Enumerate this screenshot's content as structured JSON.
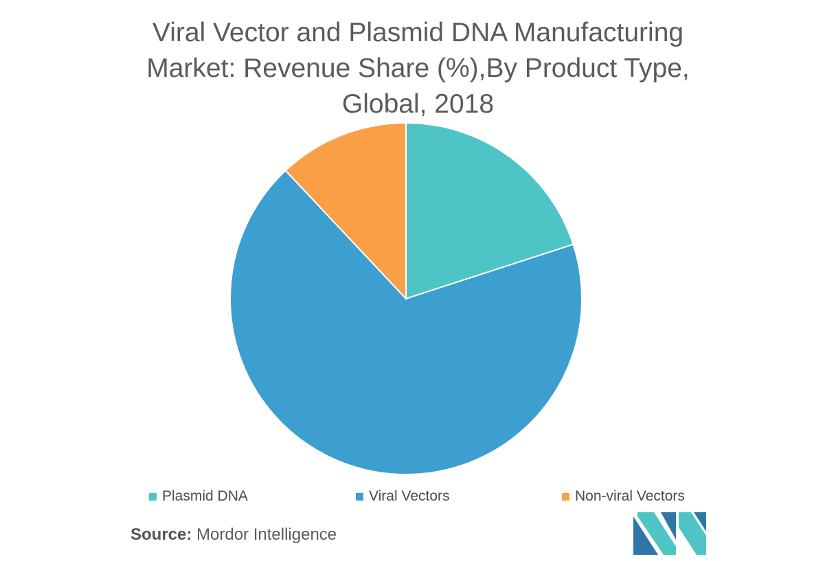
{
  "chart_data": {
    "type": "pie",
    "title": "Viral Vector and Plasmid DNA Manufacturing Market: Revenue Share (%),By Product Type, Global, 2018",
    "title_lines": [
      "Viral Vector and Plasmid DNA Manufacturing",
      "Market: Revenue Share (%),By Product Type,",
      "Global, 2018"
    ],
    "slices": [
      {
        "label": "Plasmid DNA",
        "value": 20,
        "color": "#4fc4c6"
      },
      {
        "label": "Viral Vectors",
        "value": 68,
        "color": "#3d9ed0"
      },
      {
        "label": "Non-viral Vectors",
        "value": 12,
        "color": "#fb9f47"
      }
    ],
    "legend_position": "bottom"
  },
  "source": {
    "label": "Source:",
    "text": "Mordor Intelligence"
  },
  "logo": {
    "name": "mordor-intelligence-logo",
    "colors": [
      "#2f77a8",
      "#4fc4c6"
    ]
  }
}
